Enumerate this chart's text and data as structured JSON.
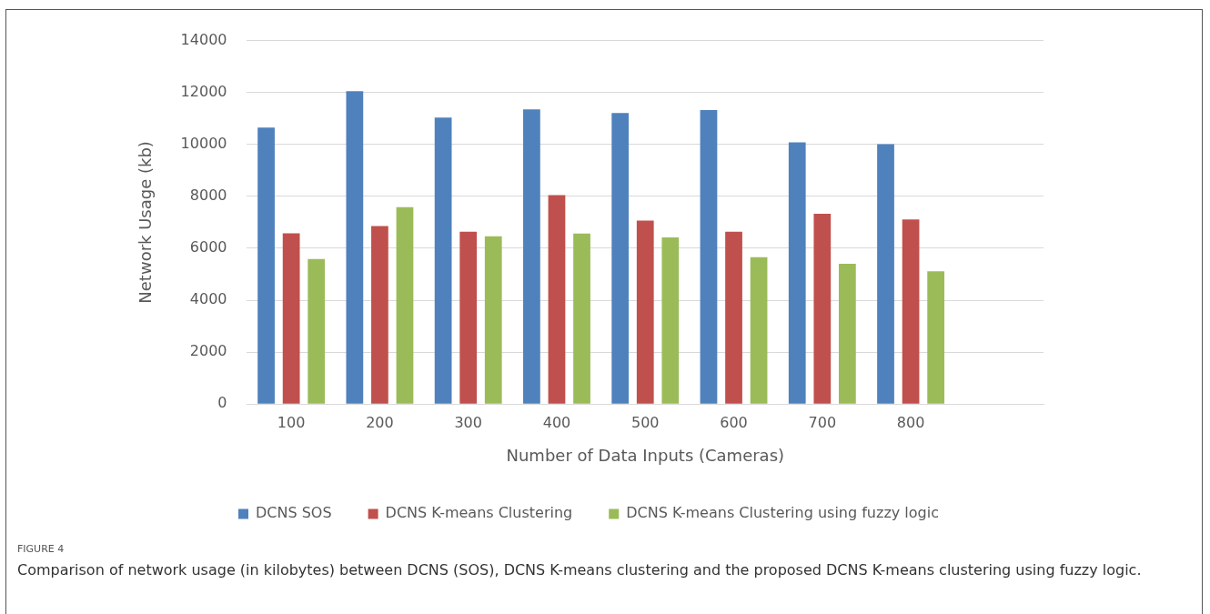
{
  "chart_data": {
    "type": "bar",
    "xlabel": "Number of Data Inputs (Cameras)",
    "ylabel": "Network Usage (kb)",
    "categories": [
      "100",
      "200",
      "300",
      "400",
      "500",
      "600",
      "700",
      "800",
      null
    ],
    "series": [
      {
        "name": "DCNS SOS",
        "color": "#4f81bd",
        "values": [
          10650,
          12050,
          11030,
          11350,
          11210,
          11320,
          10080,
          10010,
          null
        ]
      },
      {
        "name": "DCNS K-means Clustering",
        "color": "#c0504d",
        "values": [
          6580,
          6860,
          6640,
          8050,
          7070,
          6640,
          7330,
          7110,
          null
        ]
      },
      {
        "name": "DCNS K-means Clustering using fuzzy logic",
        "color": "#9bbb59",
        "values": [
          5590,
          7580,
          6460,
          6570,
          6420,
          5660,
          5400,
          5110,
          null
        ]
      }
    ],
    "ylim": [
      0,
      14000
    ],
    "yticks": [
      0,
      2000,
      4000,
      6000,
      8000,
      10000,
      12000,
      14000
    ],
    "grid": "y",
    "legend": "bottom",
    "annotations": [
      "FIGURE 4",
      "Comparison of network usage (in kilobytes) between DCNS (SOS), DCNS K-means clustering and the proposed DCNS K-means clustering using fuzzy logic."
    ]
  }
}
